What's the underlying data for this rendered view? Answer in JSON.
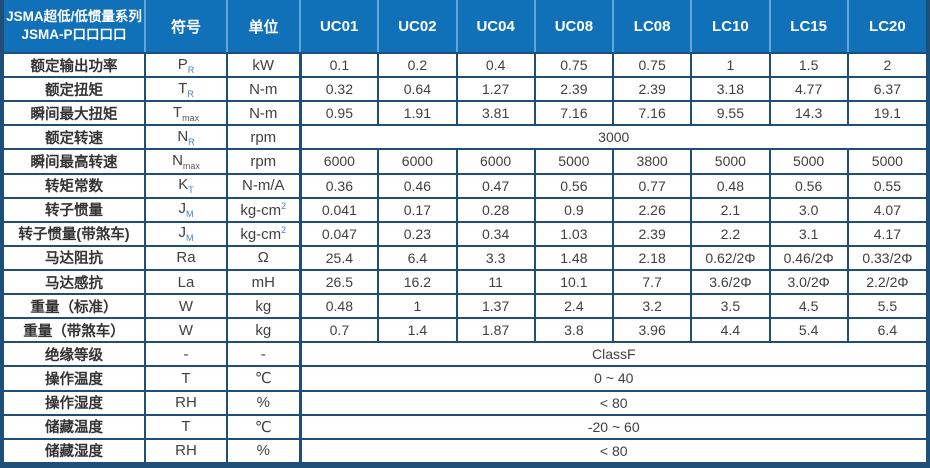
{
  "colors": {
    "header_bg": "#1070b8",
    "header_divider": "#69a4d6",
    "grid_border": "#1f4e79",
    "body_text": "#3f3f3f",
    "subscript_accent": "#4d7fbe"
  },
  "table": {
    "header": {
      "title_line1": "JSMA超低/低惯量系列",
      "title_line2": "JSMA-P口口口口",
      "symbol_col": "符号",
      "unit_col": "单位",
      "models": [
        "UC01",
        "UC02",
        "UC04",
        "UC08",
        "LC08",
        "LC10",
        "LC15",
        "LC20"
      ]
    },
    "rows": [
      {
        "label": "额定输出功率",
        "symbol": "P",
        "sub": "R",
        "unit": "kW",
        "values": [
          "0.1",
          "0.2",
          "0.4",
          "0.75",
          "0.75",
          "1",
          "1.5",
          "2"
        ]
      },
      {
        "label": "额定扭矩",
        "symbol": "T",
        "sub": "R",
        "unit": "N-m",
        "values": [
          "0.32",
          "0.64",
          "1.27",
          "2.39",
          "2.39",
          "3.18",
          "4.77",
          "6.37"
        ]
      },
      {
        "label": "瞬间最大扭矩",
        "symbol": "T",
        "sub": "max",
        "unit": "N-m",
        "values": [
          "0.95",
          "1.91",
          "3.81",
          "7.16",
          "7.16",
          "9.55",
          "14.3",
          "19.1"
        ]
      },
      {
        "label": "额定转速",
        "symbol": "N",
        "sub": "R",
        "unit": "rpm",
        "merged": "3000"
      },
      {
        "label": "瞬间最高转速",
        "symbol": "N",
        "sub": "max",
        "unit": "rpm",
        "values": [
          "6000",
          "6000",
          "6000",
          "5000",
          "3800",
          "5000",
          "5000",
          "5000"
        ]
      },
      {
        "label": "转矩常数",
        "symbol": "K",
        "sub": "T",
        "unit": "N-m/A",
        "values": [
          "0.36",
          "0.46",
          "0.47",
          "0.56",
          "0.77",
          "0.48",
          "0.56",
          "0.55"
        ]
      },
      {
        "label": "转子惯量",
        "symbol": "J",
        "sub": "M",
        "unit": "kg-cm",
        "unit_sup": "2",
        "values": [
          "0.041",
          "0.17",
          "0.28",
          "0.9",
          "2.26",
          "2.1",
          "3.0",
          "4.07"
        ]
      },
      {
        "label": "转子惯量(带煞车)",
        "symbol": "J",
        "sub": "M",
        "unit": "kg-cm",
        "unit_sup": "2",
        "values": [
          "0.047",
          "0.23",
          "0.34",
          "1.03",
          "2.39",
          "2.2",
          "3.1",
          "4.17"
        ]
      },
      {
        "label": "马达阻抗",
        "symbol": "Ra",
        "sub": "",
        "unit": "Ω",
        "values": [
          "25.4",
          "6.4",
          "3.3",
          "1.48",
          "2.18",
          "0.62/2Φ",
          "0.46/2Φ",
          "0.33/2Φ"
        ]
      },
      {
        "label": "马达感抗",
        "symbol": "La",
        "sub": "",
        "unit": "mH",
        "values": [
          "26.5",
          "16.2",
          "11",
          "10.1",
          "7.7",
          "3.6/2Φ",
          "3.0/2Φ",
          "2.2/2Φ"
        ]
      },
      {
        "label": "重量（标准）",
        "symbol": "W",
        "sub": "",
        "unit": "kg",
        "values": [
          "0.48",
          "1",
          "1.37",
          "2.4",
          "3.2",
          "3.5",
          "4.5",
          "5.5"
        ]
      },
      {
        "label": "重量（带煞车）",
        "symbol": "W",
        "sub": "",
        "unit": "kg",
        "values": [
          "0.7",
          "1.4",
          "1.87",
          "3.8",
          "3.96",
          "4.4",
          "5.4",
          "6.4"
        ]
      },
      {
        "label": "绝缘等级",
        "symbol": "-",
        "sub": "",
        "unit": "-",
        "merged": "ClassF"
      },
      {
        "label": "操作温度",
        "symbol": "T",
        "sub": "",
        "unit": "℃",
        "merged": "0 ~ 40"
      },
      {
        "label": "操作湿度",
        "symbol": "RH",
        "sub": "",
        "unit": "%",
        "merged": "< 80"
      },
      {
        "label": "储藏温度",
        "symbol": "T",
        "sub": "",
        "unit": "℃",
        "merged": "-20 ~ 60"
      },
      {
        "label": "储藏湿度",
        "symbol": "RH",
        "sub": "",
        "unit": "%",
        "merged": "< 80"
      }
    ]
  }
}
